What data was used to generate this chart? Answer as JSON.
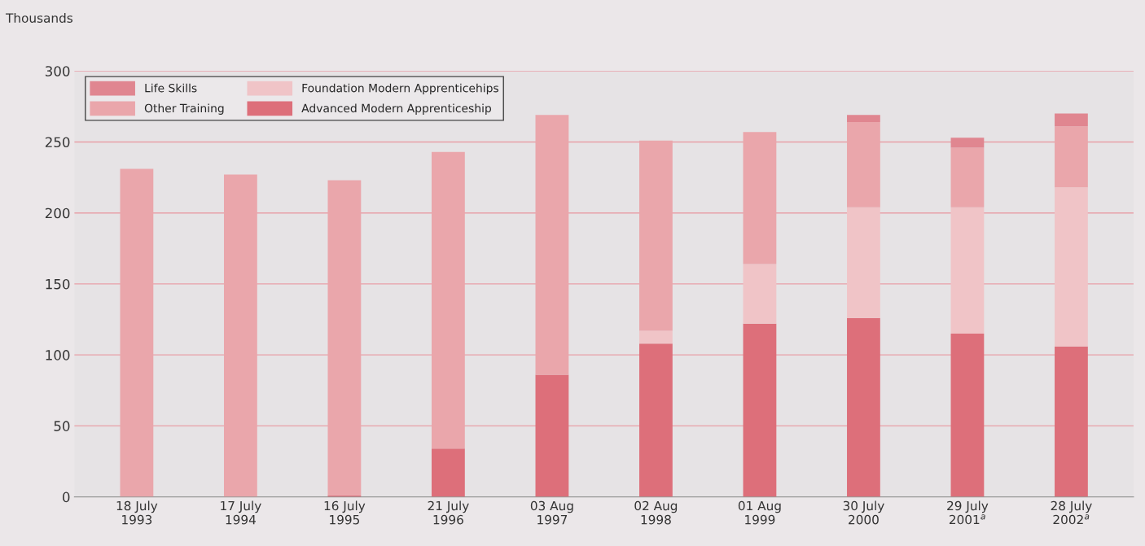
{
  "chart_data": {
    "type": "bar",
    "stacked": true,
    "ylabel": "Thousands",
    "categories": [
      "18 July\n1993",
      "17 July\n1994",
      "16 July\n1995",
      "21 July\n1996",
      "03 Aug\n1997",
      "02 Aug\n1998",
      "01 Aug\n1999",
      "30 July\n2000",
      "29 July\n2001$^{a}$",
      "28 July\n2002$^{a}$"
    ],
    "series": [
      {
        "name": "Advanced Modern Apprenticeship",
        "color": "#dd6f7a",
        "values": [
          0,
          0,
          1,
          34,
          86,
          108,
          122,
          126,
          115,
          106
        ]
      },
      {
        "name": "Foundation Modern Apprenticehips",
        "color": "#f0c4c7",
        "values": [
          0,
          0,
          0,
          0,
          0,
          9,
          42,
          78,
          89,
          112
        ]
      },
      {
        "name": "Other Training",
        "color": "#eaa6ab",
        "values": [
          231,
          227,
          222,
          209,
          183,
          134,
          93,
          60,
          42,
          43
        ]
      },
      {
        "name": "Life Skills",
        "color": "#e08690",
        "values": [
          0,
          0,
          0,
          0,
          0,
          0,
          0,
          5,
          7,
          9
        ]
      }
    ],
    "ylim": [
      0,
      300
    ],
    "yticks": [
      0,
      50,
      100,
      150,
      200,
      250,
      300
    ],
    "grid": "y",
    "legend": "top left"
  }
}
